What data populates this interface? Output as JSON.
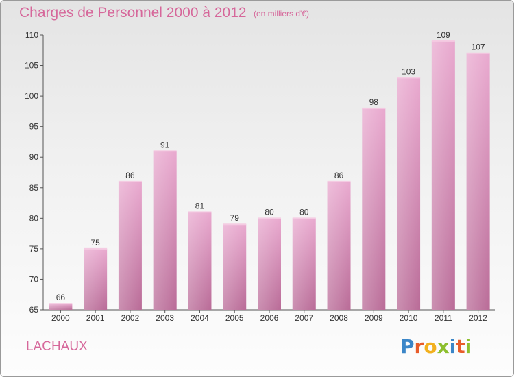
{
  "chart_data": {
    "type": "bar",
    "title": "Charges de Personnel 2000 à 2012",
    "subtitle": "(en milliers d'€)",
    "categories": [
      "2000",
      "2001",
      "2002",
      "2003",
      "2004",
      "2005",
      "2006",
      "2007",
      "2008",
      "2009",
      "2010",
      "2011",
      "2012"
    ],
    "values": [
      66,
      75,
      86,
      91,
      81,
      79,
      80,
      80,
      86,
      98,
      103,
      109,
      107
    ],
    "ylim": [
      65,
      110
    ],
    "yticks": [
      65,
      70,
      75,
      80,
      85,
      90,
      95,
      100,
      105,
      110
    ],
    "grid": false,
    "bar_color": "#cc7aa8"
  },
  "footer": {
    "town": "LACHAUX",
    "logo_letters": [
      "P",
      "r",
      "o",
      "x",
      "i",
      "t",
      "i"
    ],
    "logo_colors": [
      "#3b86c8",
      "#e85c2a",
      "#f2b01e",
      "#8dbf2e",
      "#3b86c8",
      "#e85c2a",
      "#8dbf2e"
    ]
  }
}
